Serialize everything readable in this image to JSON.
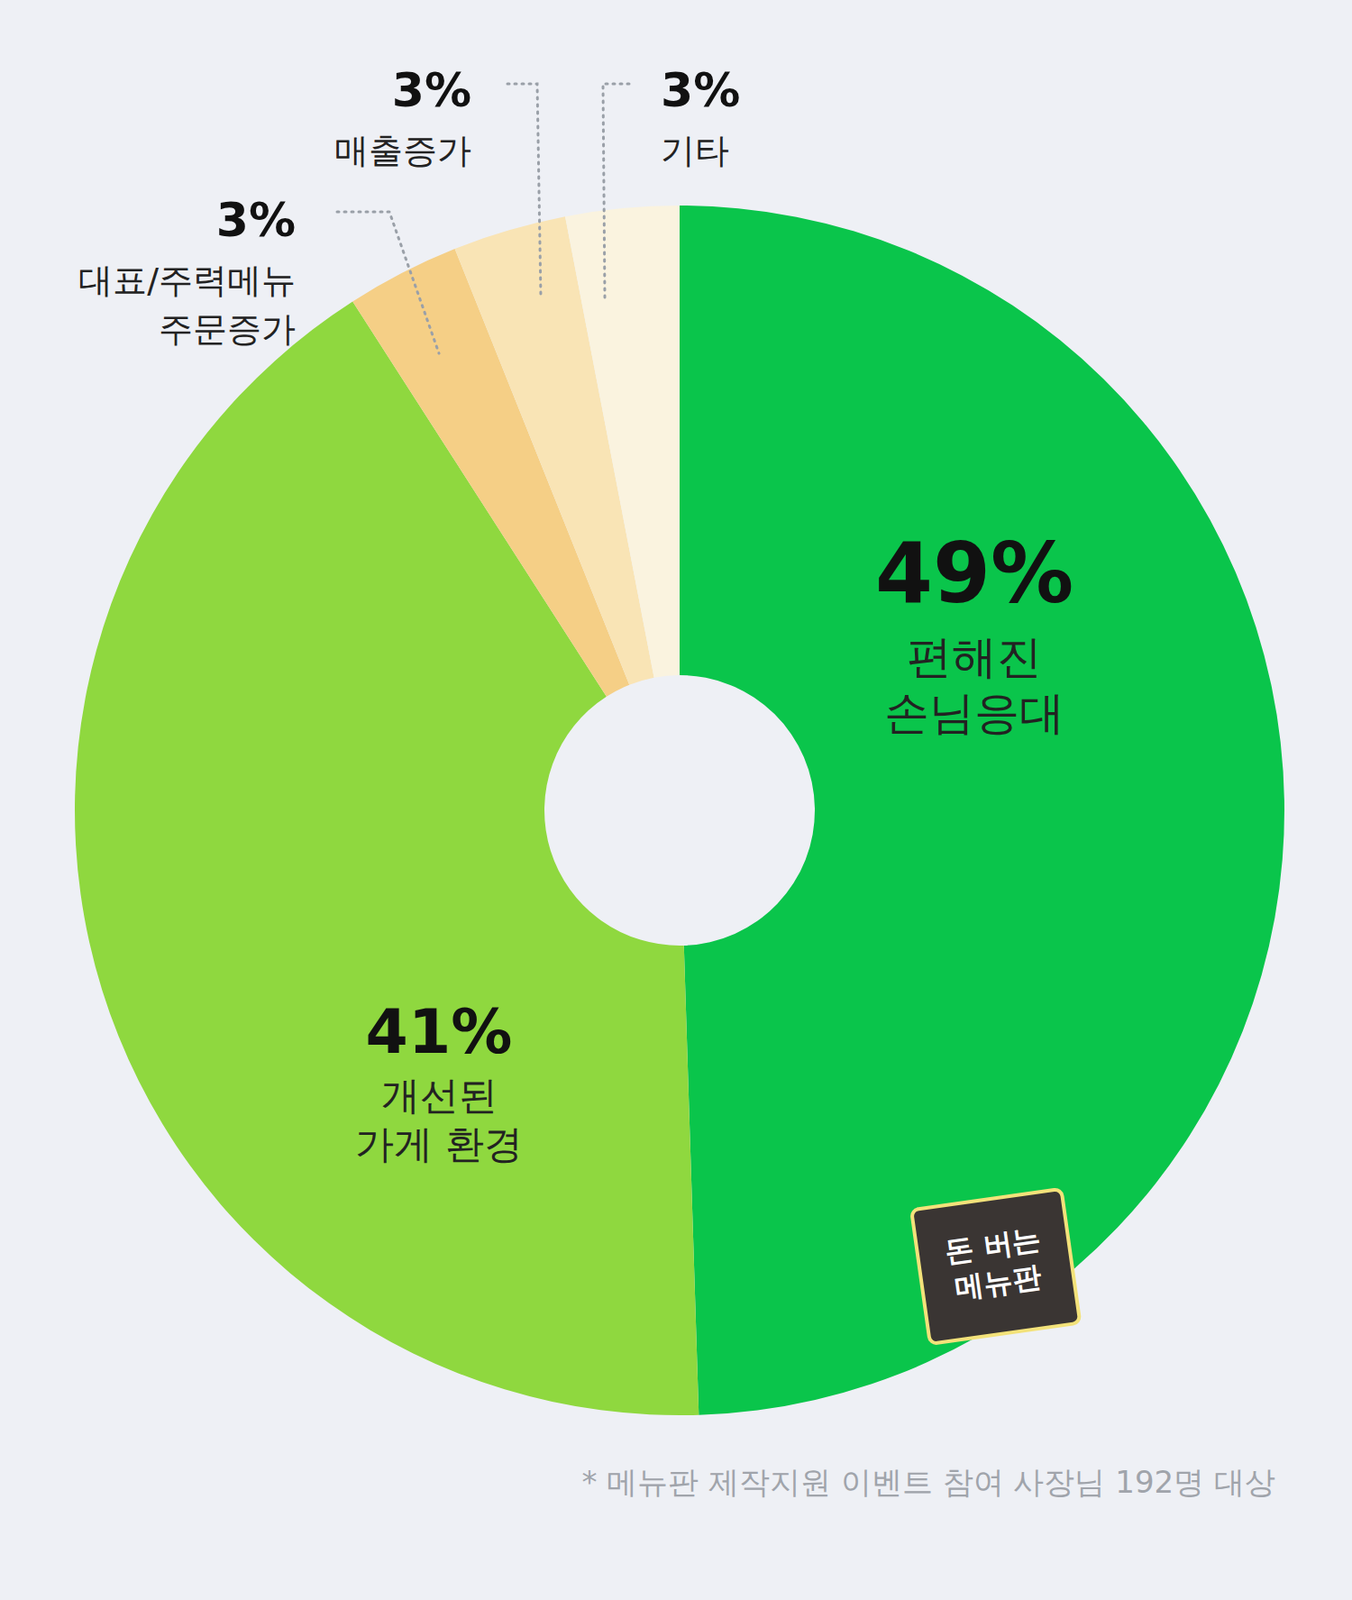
{
  "chart_data": {
    "type": "pie",
    "donut": true,
    "categories": [
      "편해진\n손님응대",
      "개선된\n가게 환경",
      "대표/주력메뉴\n주문증가",
      "매출증가",
      "기타"
    ],
    "values": [
      49,
      41,
      3,
      3,
      3
    ],
    "value_labels": [
      "49%",
      "41%",
      "3%",
      "3%",
      "3%"
    ],
    "colors": [
      "#0ac54b",
      "#8fd83f",
      "#f5cf86",
      "#f9e4b5",
      "#faf3df"
    ],
    "data_labels": true,
    "legend": false,
    "annotations": [
      "* 메뉴판 제작지원 이벤트 참여 사장님 192명 대상",
      "돈 버는\n메뉴판"
    ]
  }
}
